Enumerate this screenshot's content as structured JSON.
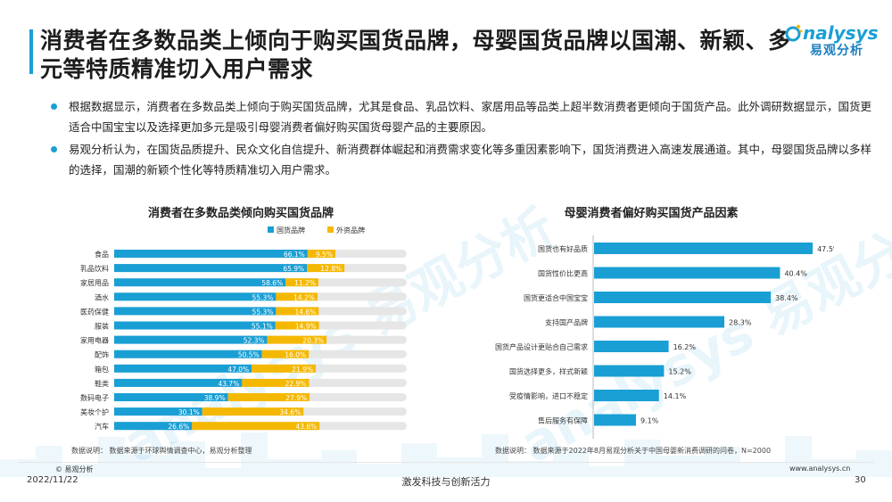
{
  "page": {
    "title": "消费者在多数品类上倾向于购买国货品牌，母婴国货品牌以国潮、新颖、多元等特质精准切入用户需求",
    "logo_en": "nalysys",
    "logo_cn": "易观分析",
    "bullets": [
      "根据数据显示，消费者在多数品类上倾向于购买国货品牌，尤其是食品、乳品饮料、家居用品等品类上超半数消费者更倾向于国货产品。此外调研数据显示，国货更适合中国宝宝以及选择更加多元是吸引母婴消费者偏好购买国货母婴产品的主要原因。",
      "易观分析认为，在国货品质提升、民众文化自信提升、新消费群体崛起和消费需求变化等多重因素影响下，国货消费进入高速发展通道。其中，母婴国货品牌以多样的选择，国潮的新颖个性化等特质精准切入用户需求。"
    ],
    "left_source": "数据说明：  数据来源于环球舆情调查中心，易观分析整理",
    "right_source": "数据说明：  数据来源于2022年8月易观分析关于中国母婴新消费调研的问卷，N=2000",
    "footer_copyright": "© 易观分析",
    "footer_date": "2022/11/22",
    "footer_slogan": "激发科技与创新活力",
    "footer_url": "www.analysys.cn",
    "footer_page": "30",
    "watermark_text": "analysys 易观分析",
    "colors": {
      "accent": "#1a9fd4",
      "domestic": "#1a9fd4",
      "foreign": "#f5b800",
      "track": "#e6e6e6"
    }
  },
  "chart_data": [
    {
      "type": "bar",
      "orientation": "horizontal-stacked",
      "title": "消费者在多数品类倾向购买国货品牌",
      "legend_position": "top-right",
      "categories": [
        "食品",
        "乳品饮料",
        "家居用品",
        "酒水",
        "医药保健",
        "服装",
        "家用电器",
        "配饰",
        "箱包",
        "鞋类",
        "数码电子",
        "美妆个护",
        "汽车"
      ],
      "series": [
        {
          "name": "国货品牌",
          "color": "#1a9fd4",
          "values": [
            66.1,
            65.9,
            58.6,
            55.3,
            55.3,
            55.1,
            52.3,
            50.5,
            47.0,
            43.7,
            38.9,
            30.1,
            26.6
          ]
        },
        {
          "name": "外资品牌",
          "color": "#f5b800",
          "values": [
            9.5,
            12.8,
            11.2,
            14.2,
            14.6,
            14.9,
            20.3,
            16.0,
            21.9,
            22.9,
            27.9,
            34.6,
            43.6
          ]
        }
      ],
      "value_labels": [
        [
          "66.1%",
          "65.9%",
          "58.6%",
          "55.3%",
          "55.3%",
          "55.1%",
          "52.3%",
          "50.5%",
          "47.0%",
          "43.7%",
          "38.9%",
          "30.1%",
          "26.6%"
        ],
        [
          "9.5%",
          "12.8%",
          "11.2%",
          "14.2%",
          "14.6%",
          "14.9%",
          "20.3%",
          "16.0%",
          "21.9%",
          "22.9%",
          "27.9%",
          "34.6%",
          "43.6%"
        ]
      ],
      "xlim": [
        0,
        100
      ]
    },
    {
      "type": "bar",
      "orientation": "horizontal",
      "title": "母婴消费者偏好购买国货产品因素",
      "categories": [
        "国货也有好品质",
        "国货性价比更高",
        "国货更适合中国宝宝",
        "支持国产品牌",
        "国货产品设计更贴合自己需求",
        "国货选择更多，样式新颖",
        "受疫情影响，进口不稳定",
        "售后服务有保障"
      ],
      "values": [
        47.5,
        40.4,
        38.4,
        28.3,
        16.2,
        15.2,
        14.1,
        9.1
      ],
      "value_labels": [
        "47.5%",
        "40.4%",
        "38.4%",
        "28.3%",
        "16.2%",
        "15.2%",
        "14.1%",
        "9.1%"
      ],
      "color": "#1a9fd4",
      "xlim": [
        0,
        50
      ]
    }
  ]
}
